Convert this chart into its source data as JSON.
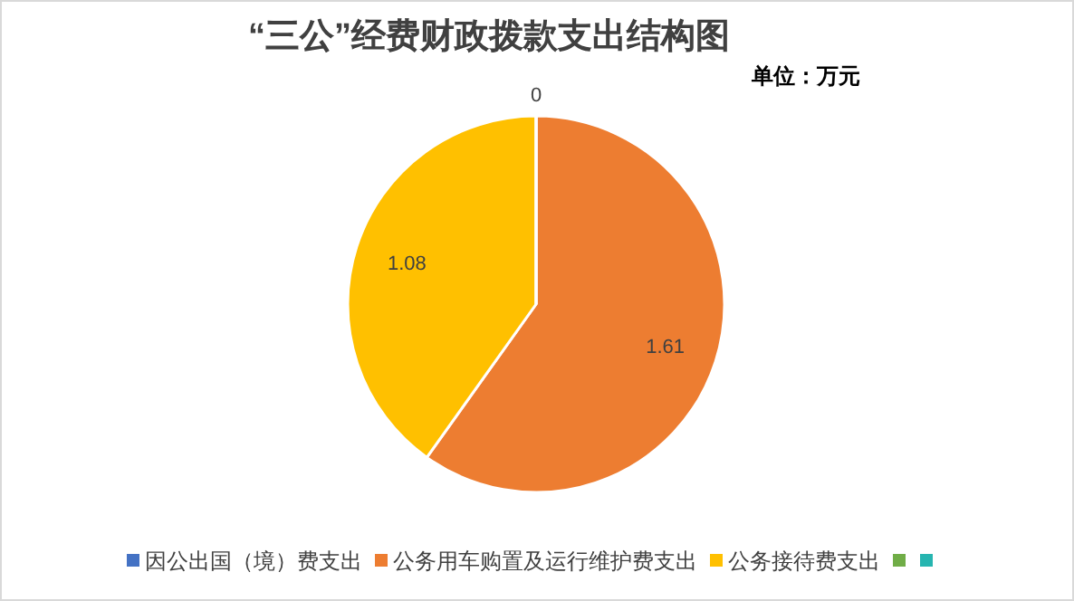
{
  "chart_data": {
    "type": "pie",
    "title": "“三公”经费财政拨款支出结构图",
    "subtitle": "单位：万元",
    "categories": [
      "因公出国（境）费支出",
      "公务用车购置及运行维护费支出",
      "公务接待费支出",
      null,
      null
    ],
    "values": [
      0,
      1.61,
      1.08,
      0,
      0
    ],
    "colors": [
      "#4472c4",
      "#ed7d31",
      "#ffc000",
      "#70ad47",
      "#26b5b0"
    ],
    "value_labels": [
      "0",
      "1.61",
      "1.08",
      null,
      null
    ],
    "legend": "bottom"
  }
}
